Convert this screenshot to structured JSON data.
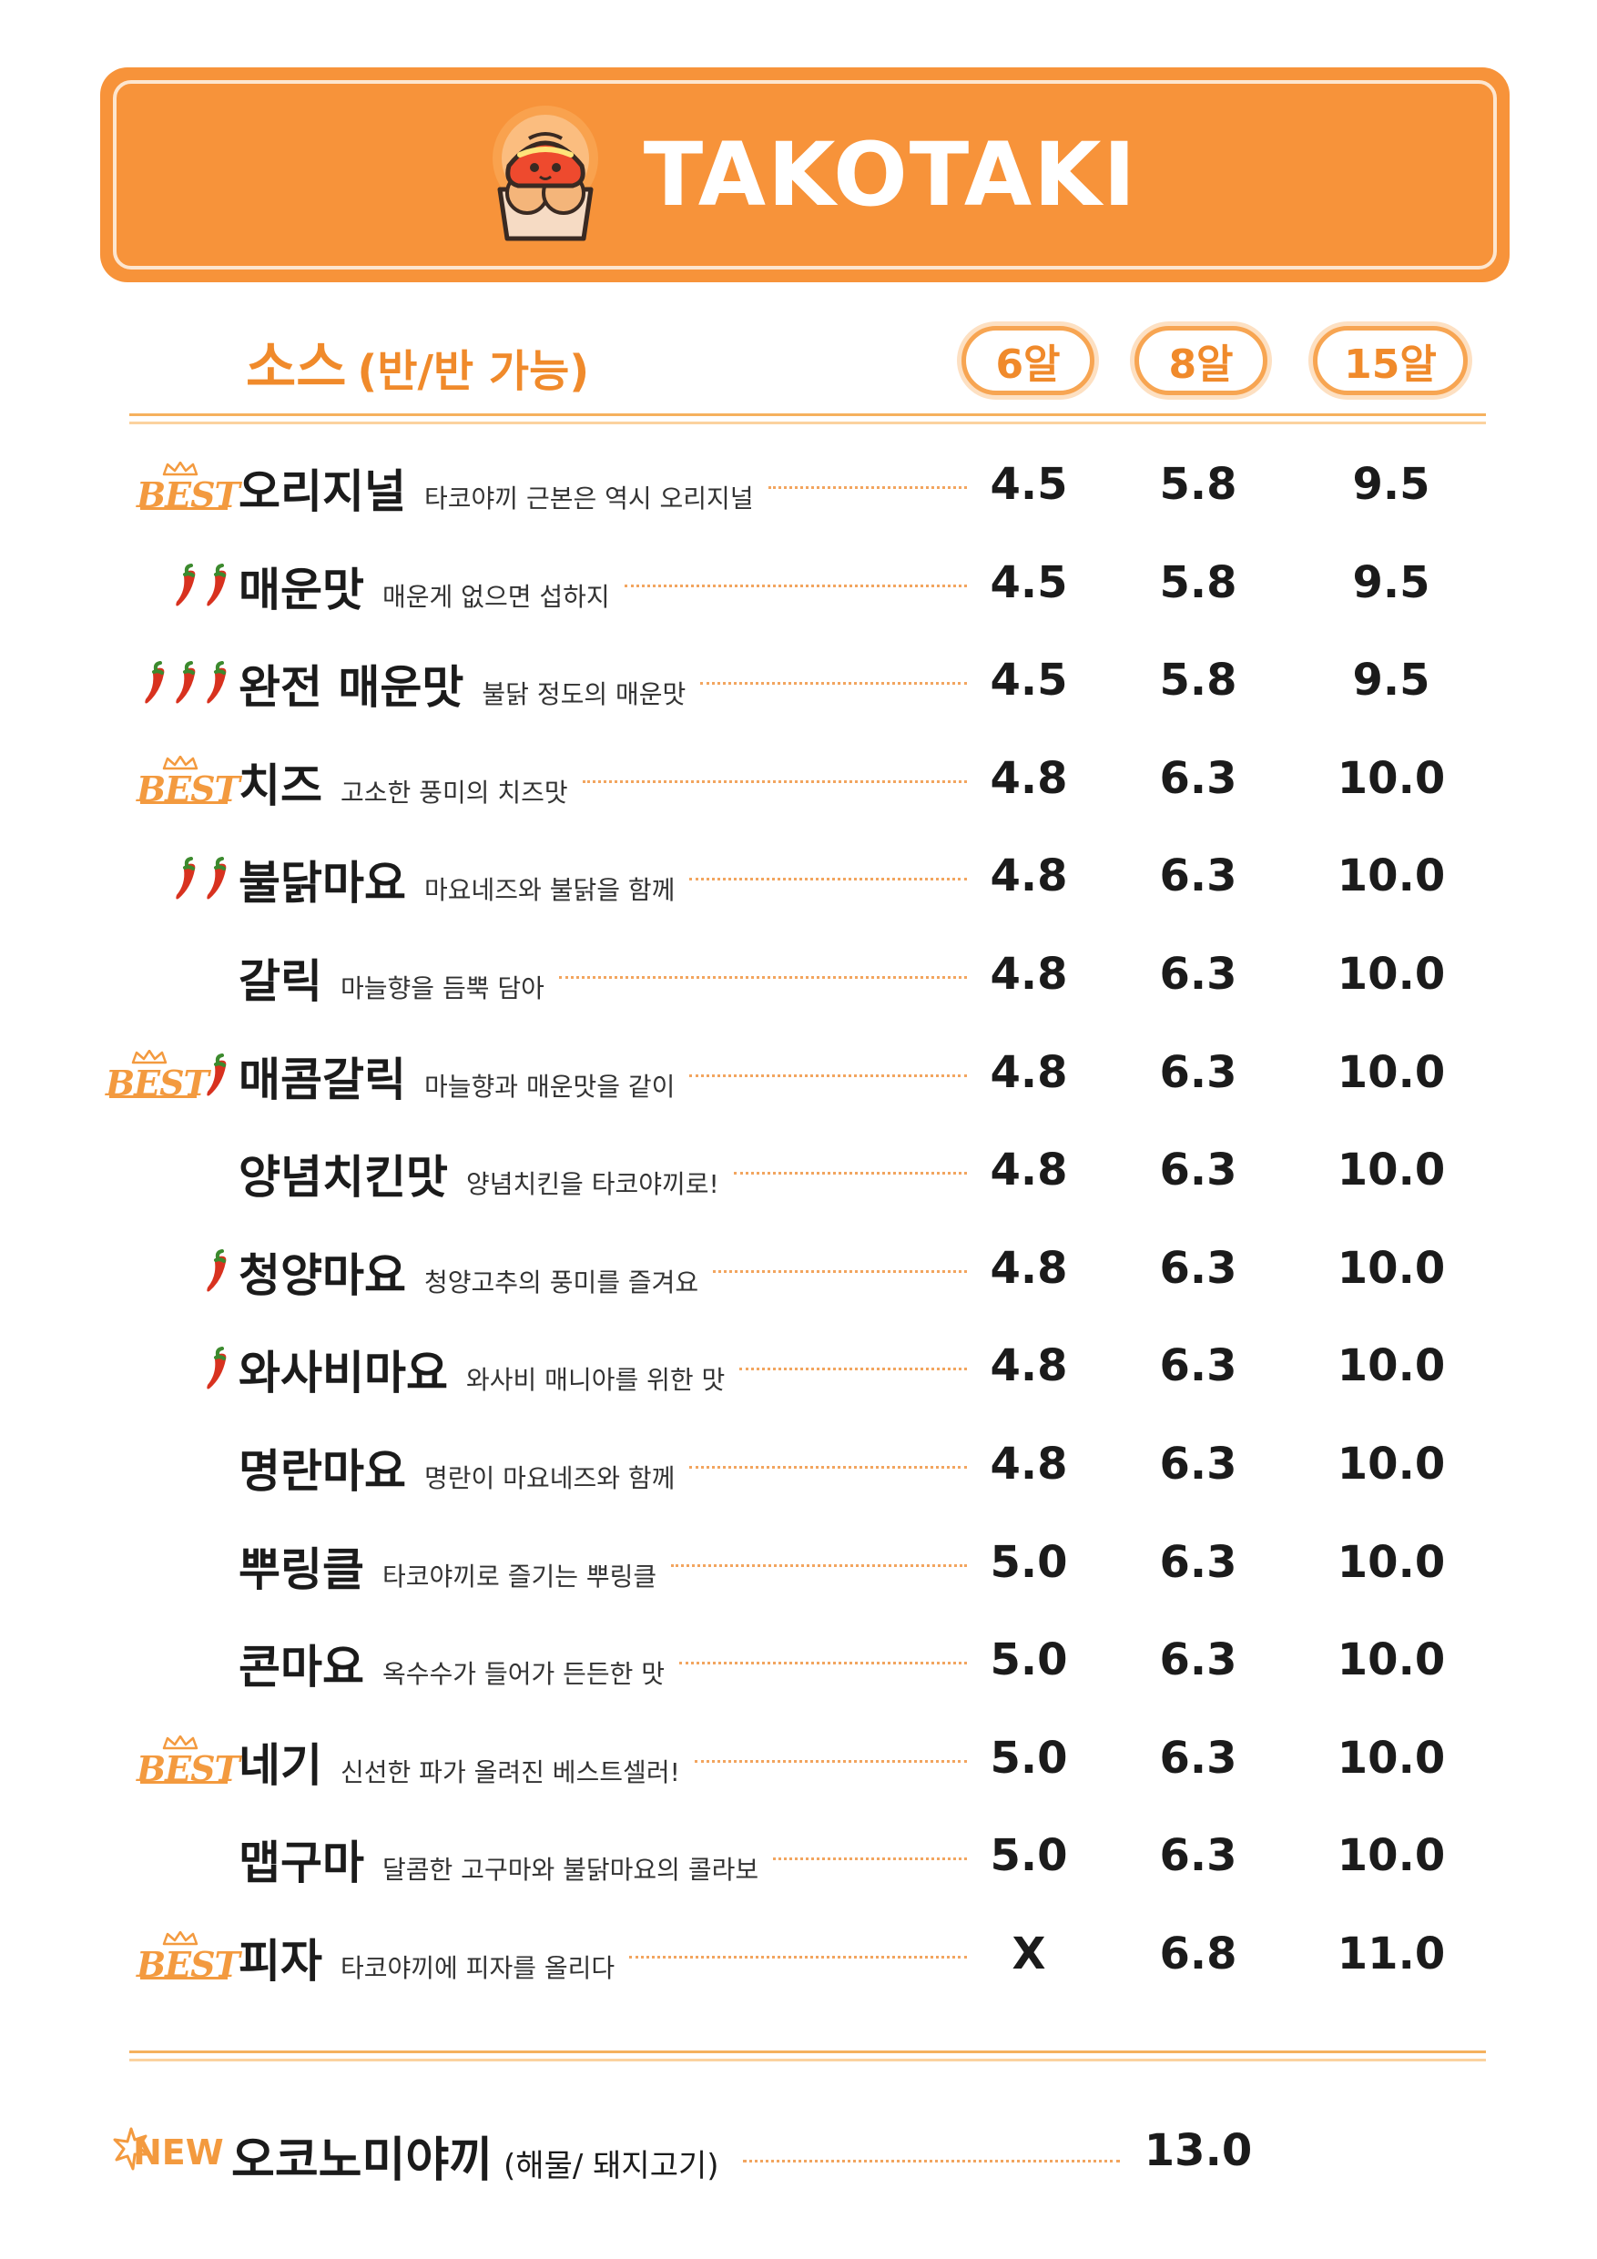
{
  "brand": {
    "name": "TAKOTAKI"
  },
  "section": {
    "title": "소스",
    "subtitle": "(반/반 가능)"
  },
  "sizes": [
    "6알",
    "8알",
    "15알"
  ],
  "items": [
    {
      "name": "오리지널",
      "desc": "타코야끼 근본은 역시 오리지널",
      "best": true,
      "peppers": 0,
      "prices": [
        "4.5",
        "5.8",
        "9.5"
      ]
    },
    {
      "name": "매운맛",
      "desc": "매운게 없으면 섭하지",
      "best": false,
      "peppers": 2,
      "prices": [
        "4.5",
        "5.8",
        "9.5"
      ]
    },
    {
      "name": "완전 매운맛",
      "desc": "불닭 정도의 매운맛",
      "best": false,
      "peppers": 3,
      "prices": [
        "4.5",
        "5.8",
        "9.5"
      ]
    },
    {
      "name": "치즈",
      "desc": "고소한 풍미의 치즈맛",
      "best": true,
      "peppers": 0,
      "prices": [
        "4.8",
        "6.3",
        "10.0"
      ]
    },
    {
      "name": "불닭마요",
      "desc": "마요네즈와 불닭을 함께",
      "best": false,
      "peppers": 2,
      "prices": [
        "4.8",
        "6.3",
        "10.0"
      ]
    },
    {
      "name": "갈릭",
      "desc": "마늘향을 듬뿍 담아",
      "best": false,
      "peppers": 0,
      "prices": [
        "4.8",
        "6.3",
        "10.0"
      ]
    },
    {
      "name": "매콤갈릭",
      "desc": "마늘향과 매운맛을 같이",
      "best": true,
      "peppers": 1,
      "prices": [
        "4.8",
        "6.3",
        "10.0"
      ]
    },
    {
      "name": "양념치킨맛",
      "desc": "양념치킨을 타코야끼로!",
      "best": false,
      "peppers": 0,
      "prices": [
        "4.8",
        "6.3",
        "10.0"
      ]
    },
    {
      "name": "청양마요",
      "desc": "청양고추의 풍미를 즐겨요",
      "best": false,
      "peppers": 1,
      "prices": [
        "4.8",
        "6.3",
        "10.0"
      ]
    },
    {
      "name": "와사비마요",
      "desc": "와사비 매니아를 위한 맛",
      "best": false,
      "peppers": 1,
      "prices": [
        "4.8",
        "6.3",
        "10.0"
      ]
    },
    {
      "name": "명란마요",
      "desc": "명란이 마요네즈와 함께",
      "best": false,
      "peppers": 0,
      "prices": [
        "4.8",
        "6.3",
        "10.0"
      ]
    },
    {
      "name": "뿌링클",
      "desc": "타코야끼로 즐기는 뿌링클",
      "best": false,
      "peppers": 0,
      "prices": [
        "5.0",
        "6.3",
        "10.0"
      ]
    },
    {
      "name": "콘마요",
      "desc": "옥수수가 들어가 든든한 맛",
      "best": false,
      "peppers": 0,
      "prices": [
        "5.0",
        "6.3",
        "10.0"
      ]
    },
    {
      "name": "네기",
      "desc": "신선한 파가 올려진 베스트셀러!",
      "best": true,
      "peppers": 0,
      "prices": [
        "5.0",
        "6.3",
        "10.0"
      ]
    },
    {
      "name": "맵구마",
      "desc": "달콤한 고구마와 불닭마요의 콜라보",
      "best": false,
      "peppers": 0,
      "prices": [
        "5.0",
        "6.3",
        "10.0"
      ]
    },
    {
      "name": "피자",
      "desc": "타코야끼에 피자를 올리다",
      "best": true,
      "peppers": 0,
      "prices": [
        "X",
        "6.8",
        "11.0"
      ]
    }
  ],
  "badge_text": {
    "best": "BEST",
    "new": "NEW"
  },
  "new_item": {
    "name": "오코노미야끼",
    "options": "(해물/ 돼지고기)",
    "price": "13.0"
  },
  "colors": {
    "accent": "#f7933a",
    "accent_light": "#fde6cf",
    "pepper": "#d8321f",
    "text": "#1b1b1b"
  }
}
